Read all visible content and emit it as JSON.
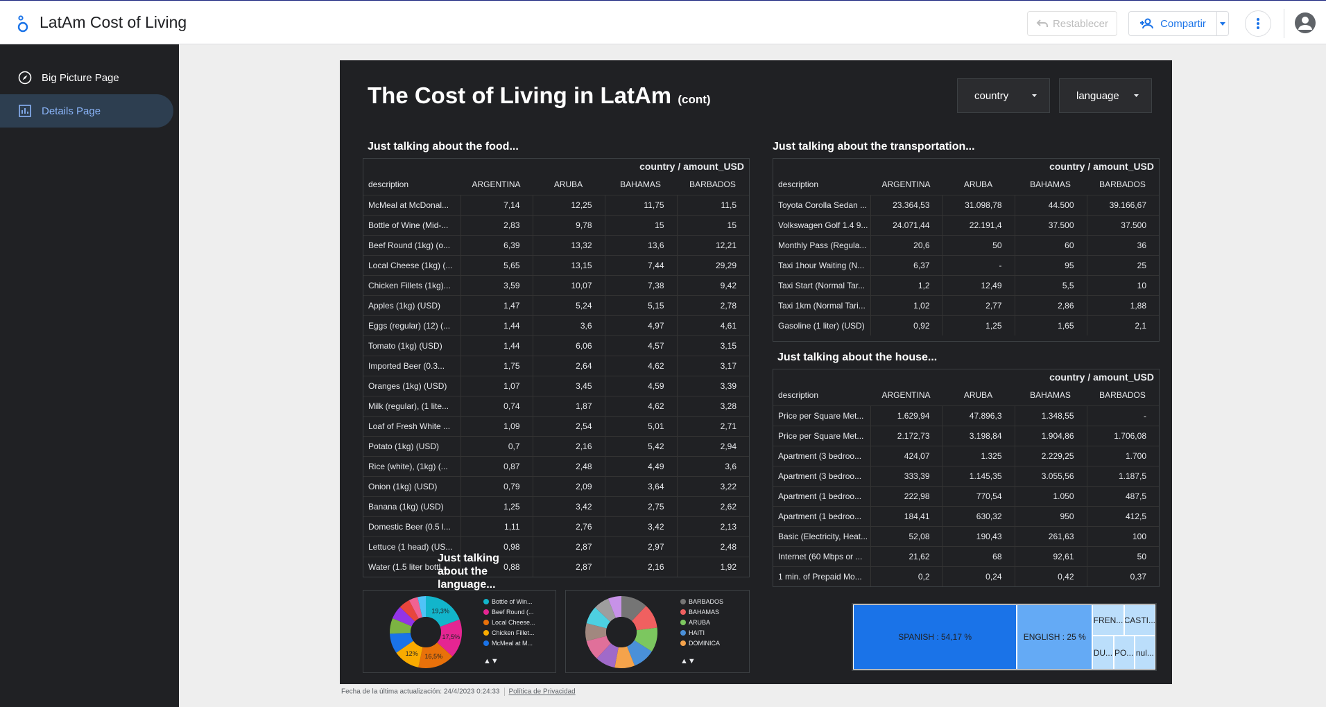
{
  "app": {
    "title": "LatAm Cost of Living"
  },
  "toolbar": {
    "reset_label": "Restablecer",
    "share_label": "Compartir"
  },
  "sidebar": {
    "items": [
      {
        "label": "Big Picture Page"
      },
      {
        "label": "Details Page"
      }
    ]
  },
  "report": {
    "title": "The Cost of Living in LatAm",
    "title_suffix": "(cont)",
    "filters": [
      {
        "label": "country"
      },
      {
        "label": "language"
      }
    ]
  },
  "food": {
    "title": "Just talking about the food...",
    "pivot_label": "country / amount_USD",
    "columns": [
      "description",
      "ARGENTINA",
      "ARUBA",
      "BAHAMAS",
      "BARBADOS"
    ],
    "rows": [
      [
        "McMeal at McDonal...",
        "7,14",
        "12,25",
        "11,75",
        "11,5"
      ],
      [
        "Bottle of Wine (Mid-...",
        "2,83",
        "9,78",
        "15",
        "15"
      ],
      [
        "Beef Round (1kg) (o...",
        "6,39",
        "13,32",
        "13,6",
        "12,21"
      ],
      [
        "Local Cheese (1kg) (...",
        "5,65",
        "13,15",
        "7,44",
        "29,29"
      ],
      [
        "Chicken Fillets (1kg)...",
        "3,59",
        "10,07",
        "7,38",
        "9,42"
      ],
      [
        "Apples (1kg) (USD)",
        "1,47",
        "5,24",
        "5,15",
        "2,78"
      ],
      [
        "Eggs (regular) (12) (...",
        "1,44",
        "3,6",
        "4,97",
        "4,61"
      ],
      [
        "Tomato (1kg) (USD)",
        "1,44",
        "6,06",
        "4,57",
        "3,15"
      ],
      [
        "Imported Beer (0.3...",
        "1,75",
        "2,64",
        "4,62",
        "3,17"
      ],
      [
        "Oranges (1kg) (USD)",
        "1,07",
        "3,45",
        "4,59",
        "3,39"
      ],
      [
        "Milk (regular), (1 lite...",
        "0,74",
        "1,87",
        "4,62",
        "3,28"
      ],
      [
        "Loaf of Fresh White ...",
        "1,09",
        "2,54",
        "5,01",
        "2,71"
      ],
      [
        "Potato (1kg) (USD)",
        "0,7",
        "2,16",
        "5,42",
        "2,94"
      ],
      [
        "Rice (white), (1kg) (...",
        "0,87",
        "2,48",
        "4,49",
        "3,6"
      ],
      [
        "Onion (1kg) (USD)",
        "0,79",
        "2,09",
        "3,64",
        "3,22"
      ],
      [
        "Banana (1kg) (USD)",
        "1,25",
        "3,42",
        "2,75",
        "2,62"
      ],
      [
        "Domestic Beer (0.5 l...",
        "1,11",
        "2,76",
        "3,42",
        "2,13"
      ],
      [
        "Lettuce (1 head) (US...",
        "0,98",
        "2,87",
        "2,97",
        "2,48"
      ],
      [
        "Water (1.5 liter bottl...",
        "0,88",
        "2,87",
        "2,16",
        "1,92"
      ]
    ]
  },
  "transport": {
    "title": "Just talking about the transportation...",
    "pivot_label": "country / amount_USD",
    "columns": [
      "description",
      "ARGENTINA",
      "ARUBA",
      "BAHAMAS",
      "BARBADOS"
    ],
    "rows": [
      [
        "Toyota Corolla Sedan ...",
        "23.364,53",
        "31.098,78",
        "44.500",
        "39.166,67"
      ],
      [
        "Volkswagen Golf 1.4 9...",
        "24.071,44",
        "22.191,4",
        "37.500",
        "37.500"
      ],
      [
        "Monthly Pass (Regula...",
        "20,6",
        "50",
        "60",
        "36"
      ],
      [
        "Taxi 1hour Waiting (N...",
        "6,37",
        "-",
        "95",
        "25"
      ],
      [
        "Taxi Start (Normal Tar...",
        "1,2",
        "12,49",
        "5,5",
        "10"
      ],
      [
        "Taxi 1km (Normal Tari...",
        "1,02",
        "2,77",
        "2,86",
        "1,88"
      ],
      [
        "Gasoline (1 liter) (USD)",
        "0,92",
        "1,25",
        "1,65",
        "2,1"
      ]
    ]
  },
  "house": {
    "title": "Just talking about the house...",
    "pivot_label": "country / amount_USD",
    "columns": [
      "description",
      "ARGENTINA",
      "ARUBA",
      "BAHAMAS",
      "BARBADOS"
    ],
    "rows": [
      [
        "Price per Square Met...",
        "1.629,94",
        "47.896,3",
        "1.348,55",
        "-"
      ],
      [
        "Price per Square Met...",
        "2.172,73",
        "3.198,84",
        "1.904,86",
        "1.706,08"
      ],
      [
        "Apartment (3 bedroo...",
        "424,07",
        "1.325",
        "2.229,25",
        "1.700"
      ],
      [
        "Apartment (3 bedroo...",
        "333,39",
        "1.145,35",
        "3.055,56",
        "1.187,5"
      ],
      [
        "Apartment (1 bedroo...",
        "222,98",
        "770,54",
        "1.050",
        "487,5"
      ],
      [
        "Apartment (1 bedroo...",
        "184,41",
        "630,32",
        "950",
        "412,5"
      ],
      [
        "Basic (Electricity, Heat...",
        "52,08",
        "190,43",
        "261,63",
        "100"
      ],
      [
        "Internet (60 Mbps or ...",
        "21,62",
        "68",
        "92,61",
        "50"
      ],
      [
        "1 min. of Prepaid Mo...",
        "0,2",
        "0,24",
        "0,42",
        "0,37"
      ]
    ]
  },
  "language": {
    "title": "Just talking about the language..."
  },
  "footer": {
    "updated": "Fecha de la última actualización: 24/4/2023 0:24:33",
    "privacy": "Política de Privacidad"
  },
  "chart_data": [
    {
      "type": "pie",
      "title": "food donut",
      "legend": [
        "Bottle of Win...",
        "Beef Round (...",
        "Local Cheese...",
        "Chicken Fillet...",
        "McMeal at M..."
      ],
      "legend_colors": [
        "#12b5cb",
        "#e52592",
        "#e8710a",
        "#f9ab00",
        "#1a73e8"
      ],
      "slices": [
        {
          "color": "#12b5cb",
          "value": 19.3,
          "label": "19,3%"
        },
        {
          "color": "#e52592",
          "value": 17.5,
          "label": "17,5%"
        },
        {
          "color": "#e8710a",
          "value": 16.5,
          "label": "16,5%"
        },
        {
          "color": "#f9ab00",
          "value": 12,
          "label": "12%"
        },
        {
          "color": "#1a73e8",
          "value": 9,
          "label": ""
        },
        {
          "color": "#7cb342",
          "value": 7,
          "label": ""
        },
        {
          "color": "#9334e6",
          "value": 6,
          "label": ""
        },
        {
          "color": "#e8453c",
          "value": 5,
          "label": ""
        },
        {
          "color": "#f06292",
          "value": 4,
          "label": ""
        },
        {
          "color": "#4fc3f7",
          "value": 3.7,
          "label": ""
        }
      ]
    },
    {
      "type": "pie",
      "title": "country donut",
      "legend": [
        "BARBADOS",
        "BAHAMAS",
        "ARUBA",
        "HAITI",
        "DOMINICA"
      ],
      "legend_colors": [
        "#757575",
        "#f06060",
        "#7cc75f",
        "#4a90d9",
        "#f5a34b"
      ],
      "slices": [
        {
          "color": "#757575",
          "value": 12,
          "label": ""
        },
        {
          "color": "#f06060",
          "value": 11,
          "label": ""
        },
        {
          "color": "#7cc75f",
          "value": 11,
          "label": ""
        },
        {
          "color": "#4a90d9",
          "value": 10,
          "label": ""
        },
        {
          "color": "#f5a34b",
          "value": 9,
          "label": ""
        },
        {
          "color": "#a06ac9",
          "value": 9,
          "label": ""
        },
        {
          "color": "#e0709a",
          "value": 9,
          "label": ""
        },
        {
          "color": "#a1887f",
          "value": 8,
          "label": ""
        },
        {
          "color": "#4dd0e1",
          "value": 8,
          "label": ""
        },
        {
          "color": "#9e9e9e",
          "value": 7,
          "label": ""
        },
        {
          "color": "#c792e8",
          "value": 6,
          "label": ""
        }
      ]
    },
    {
      "type": "treemap",
      "title": "language",
      "cells": [
        {
          "label": "SPANISH : 54,17 %",
          "value": 54.17,
          "color": "#1a73e8"
        },
        {
          "label": "ENGLISH : 25 %",
          "value": 25,
          "color": "#64aaf5"
        },
        {
          "label": "FREN...",
          "value": 5,
          "color": "#bbdefb"
        },
        {
          "label": "CASTI...",
          "value": 5,
          "color": "#bbdefb"
        },
        {
          "label": "DU...",
          "value": 3.6,
          "color": "#bbdefb"
        },
        {
          "label": "PO...",
          "value": 3.6,
          "color": "#bbdefb"
        },
        {
          "label": "nul...",
          "value": 3.6,
          "color": "#bbdefb"
        }
      ]
    }
  ]
}
